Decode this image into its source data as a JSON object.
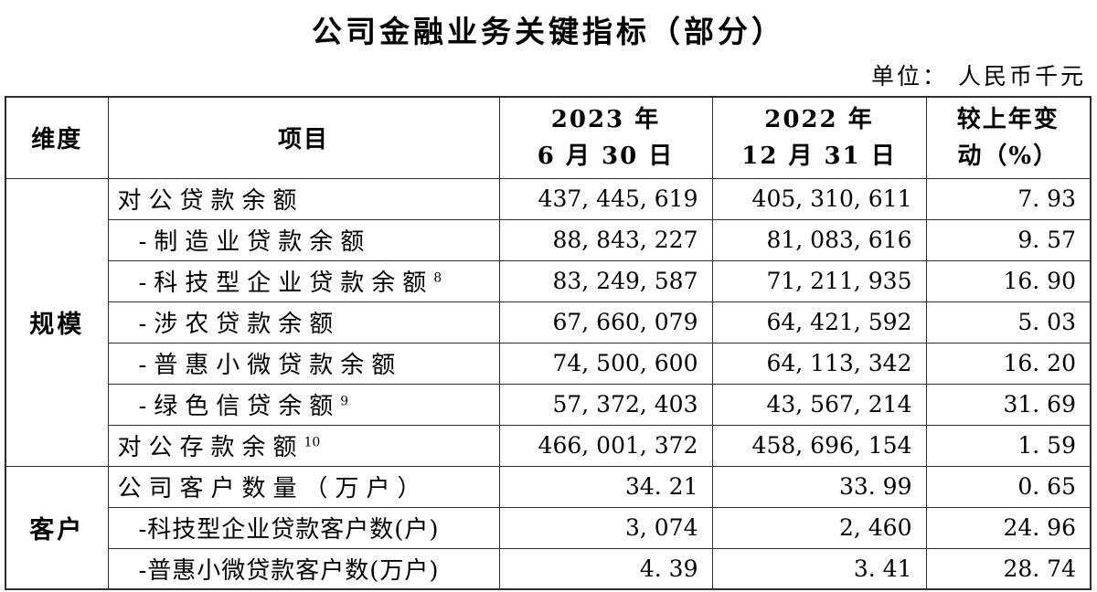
{
  "page": {
    "title": "公司金融业务关键指标（部分）",
    "unit_note": "单位： 人民币千元"
  },
  "table": {
    "headers": {
      "dimension": "维度",
      "item": "项目",
      "period_2023": [
        "2023 年",
        "6 月 30 日"
      ],
      "period_2022": [
        "2022 年",
        "12 月 31 日"
      ],
      "change": [
        "较上年变",
        "动（%）"
      ]
    },
    "sections": [
      {
        "dimension": "规模",
        "rows": [
          {
            "item": "对公贷款余额",
            "sup": "",
            "indent": false,
            "v2023": "437, 445, 619",
            "v2022": "405, 310, 611",
            "change": "7. 93"
          },
          {
            "item": "-制造业贷款余额",
            "sup": "",
            "indent": true,
            "v2023": "88, 843, 227",
            "v2022": "81, 083, 616",
            "change": "9. 57"
          },
          {
            "item": "-科技型企业贷款余额",
            "sup": "8",
            "indent": true,
            "v2023": "83, 249, 587",
            "v2022": "71, 211, 935",
            "change": "16. 90"
          },
          {
            "item": "-涉农贷款余额",
            "sup": "",
            "indent": true,
            "v2023": "67, 660, 079",
            "v2022": "64, 421, 592",
            "change": "5. 03"
          },
          {
            "item": "-普惠小微贷款余额",
            "sup": "",
            "indent": true,
            "v2023": "74, 500, 600",
            "v2022": "64, 113, 342",
            "change": "16. 20"
          },
          {
            "item": "-绿色信贷余额",
            "sup": "9",
            "indent": true,
            "v2023": "57, 372, 403",
            "v2022": "43, 567, 214",
            "change": "31. 69"
          },
          {
            "item": "对公存款余额",
            "sup": "10",
            "indent": false,
            "v2023": "466, 001, 372",
            "v2022": "458, 696, 154",
            "change": "1. 59"
          }
        ]
      },
      {
        "dimension": "客户",
        "rows": [
          {
            "item": "公司客户数量（万户）",
            "sup": "",
            "indent": false,
            "v2023": "34. 21",
            "v2022": "33. 99",
            "change": "0. 65"
          },
          {
            "item": "-科技型企业贷款客户数(户)",
            "sup": "",
            "indent": true,
            "v2023": "3, 074",
            "v2022": "2, 460",
            "change": "24. 96"
          },
          {
            "item": "-普惠小微贷款客户数(万户)",
            "sup": "",
            "indent": true,
            "v2023": "4. 39",
            "v2022": "3. 41",
            "change": "28. 74"
          }
        ]
      }
    ]
  },
  "colors": {
    "text": "#000000",
    "border": "#2e2e2e",
    "background": "#ffffff"
  }
}
